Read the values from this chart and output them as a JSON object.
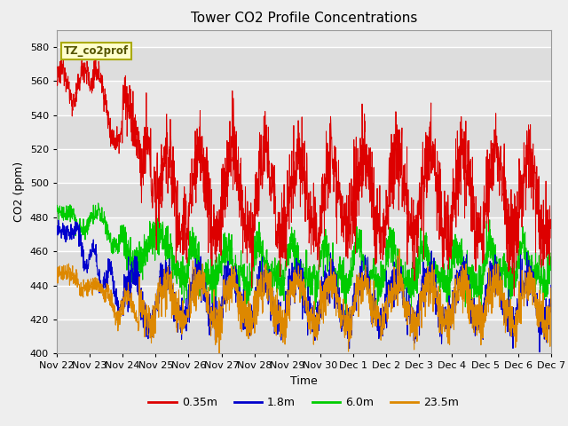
{
  "title": "Tower CO2 Profile Concentrations",
  "xlabel": "Time",
  "ylabel": "CO2 (ppm)",
  "ylim": [
    400,
    590
  ],
  "yticks": [
    400,
    420,
    440,
    460,
    480,
    500,
    520,
    540,
    560,
    580
  ],
  "label_tag": "TZ_co2prof",
  "bg_color": "#eeeeee",
  "plot_bg_light": "#e8e8e8",
  "plot_bg_dark": "#d8d8d8",
  "series_colors": {
    "0.35m": "#dd0000",
    "1.8m": "#0000cc",
    "6.0m": "#00cc00",
    "23.5m": "#dd8800"
  },
  "legend_labels": [
    "0.35m",
    "1.8m",
    "6.0m",
    "23.5m"
  ],
  "n_points": 2160,
  "x_tick_labels": [
    "Nov 22",
    "Nov 23",
    "Nov 24",
    "Nov 25",
    "Nov 26",
    "Nov 27",
    "Nov 28",
    "Nov 29",
    "Nov 30",
    "Dec 1",
    "Dec 2",
    "Dec 3",
    "Dec 4",
    "Dec 5",
    "Dec 6",
    "Dec 7"
  ],
  "n_days": 15,
  "figwidth": 6.4,
  "figheight": 4.8,
  "dpi": 100
}
